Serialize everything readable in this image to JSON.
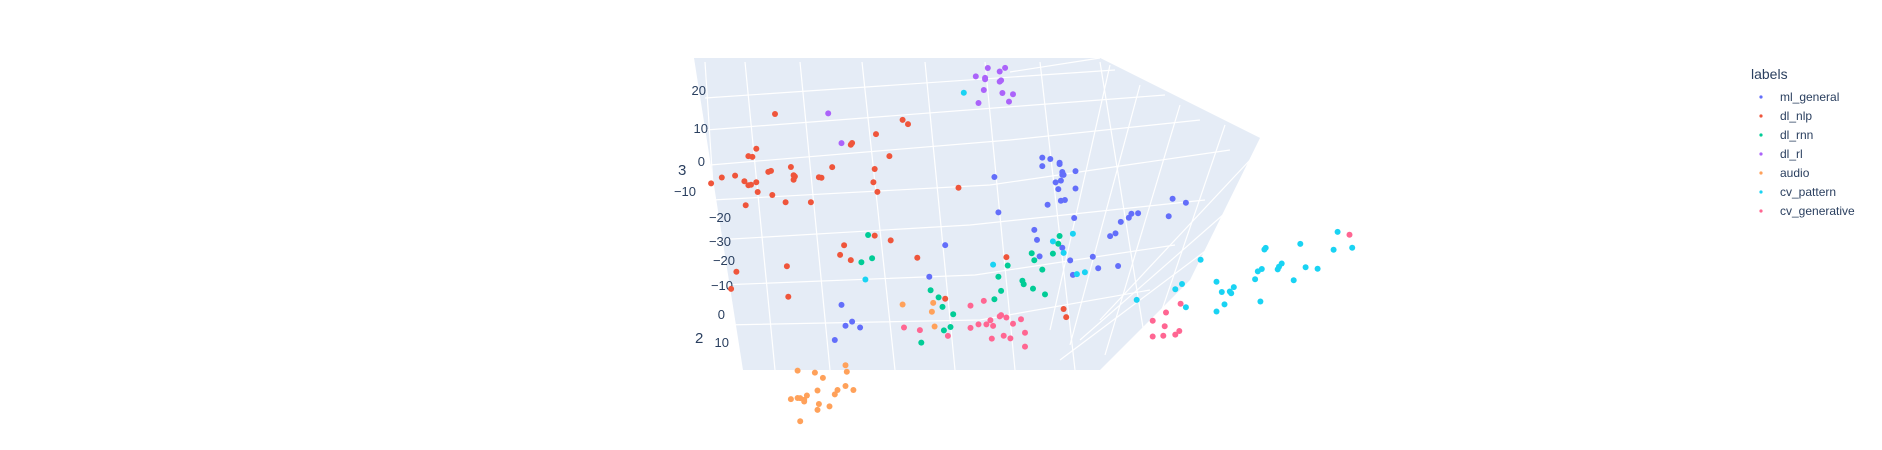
{
  "chart_data": {
    "type": "scatter",
    "projection": "3d",
    "legend": {
      "title": "labels",
      "placement": "top-right"
    },
    "axes": {
      "y_ticks": [
        "20",
        "10",
        "0",
        "−10",
        "−20",
        "−30"
      ],
      "z_ticks": [
        "−20",
        "−10",
        "0",
        "10"
      ],
      "y_title": "3",
      "z_title": "2"
    },
    "grid": true,
    "series": [
      {
        "name": "ml_general",
        "color": "#636efa",
        "points": [
          [
            2.4,
            9.5,
            -9.2
          ],
          [
            1.6,
            12.0,
            -13.7
          ],
          [
            2.5,
            10.0,
            -13.5
          ],
          [
            3.5,
            7.5,
            -16.1
          ],
          [
            1.0,
            9.9,
            -16.0
          ],
          [
            2.5,
            7.1,
            -15.9
          ],
          [
            3.5,
            7.2,
            -13.5
          ],
          [
            2.7,
            7.6,
            -11.2
          ],
          [
            2.4,
            5.7,
            -16.3
          ],
          [
            2.6,
            9.5,
            -13.5
          ],
          [
            2.3,
            8.5,
            -16.5
          ],
          [
            1.4,
            7.8,
            -10.2
          ],
          [
            2.2,
            7.4,
            -13.2
          ],
          [
            1.0,
            4.8,
            -19.6
          ],
          [
            2.0,
            5.5,
            -16.2
          ],
          [
            -2.3,
            5.5,
            -11.2
          ],
          [
            2.3,
            9.2,
            -15.6
          ],
          [
            6.5,
            0.0,
            -13.1
          ],
          [
            7.5,
            0.0,
            -15.7
          ],
          [
            5.2,
            -5.3,
            -12.5
          ],
          [
            8.2,
            2.6,
            -13.9
          ],
          [
            6.1,
            -3.0,
            -15.6
          ],
          [
            10.8,
            1.7,
            -17.2
          ],
          [
            3.4,
            2.3,
            -13.4
          ],
          [
            4.8,
            -1.4,
            -10.6
          ],
          [
            0.6,
            -1.4,
            -13.4
          ],
          [
            0.4,
            1.1,
            -12.6
          ],
          [
            3.1,
            -5.8,
            -14.3
          ],
          [
            6.9,
            -1.2,
            -16.2
          ],
          [
            3.3,
            -5.1,
            -11.2
          ],
          [
            6.7,
            -4.0,
            -11.6
          ],
          [
            0.8,
            -4.4,
            -13.6
          ],
          [
            2.5,
            0.0,
            -10.7
          ],
          [
            -13.8,
            -12.8,
            -10.3
          ],
          [
            -14.6,
            -13.6,
            -8.7
          ],
          [
            -13.3,
            -12.2,
            -10.4
          ],
          [
            -12.7,
            -13.1,
            -10.3
          ],
          [
            -14.1,
            -10.7,
            -11.7
          ],
          [
            -6.3,
            -3.5,
            -14.6
          ],
          [
            -7.5,
            -5.0,
            -10.8
          ],
          [
            -2.6,
            6.0,
            -16.6
          ],
          [
            7.7,
            0.9,
            -15.5
          ],
          [
            11.8,
            5.0,
            -13.3
          ],
          [
            10.5,
            2.4,
            -13.6
          ]
        ]
      },
      {
        "name": "dl_nlp",
        "color": "#EF553B",
        "points": [
          [
            -21.1,
            12.7,
            -13.5
          ],
          [
            -22.1,
            10.2,
            -12.7
          ],
          [
            -19.1,
            18.2,
            -15.1
          ],
          [
            -17.6,
            6.5,
            -16.2
          ],
          [
            -17.7,
            10.1,
            -12.1
          ],
          [
            -21.3,
            6.0,
            -11.9
          ],
          [
            -20.8,
            14.8,
            -11.3
          ],
          [
            -15.6,
            8.0,
            -14.5
          ],
          [
            -16.4,
            5.6,
            -12.8
          ],
          [
            -15.8,
            9.3,
            -13.3
          ],
          [
            -23.1,
            11.4,
            -11.2
          ],
          [
            -19.6,
            9.4,
            -14.1
          ],
          [
            -20.5,
            12.4,
            -15.0
          ],
          [
            -17.7,
            6.3,
            -16.6
          ],
          [
            -21.1,
            10.0,
            -11.3
          ],
          [
            -19.4,
            11.3,
            -12.4
          ],
          [
            -18.3,
            6.1,
            -12.3
          ],
          [
            -23.9,
            9.7,
            -11.9
          ],
          [
            -20.5,
            9.8,
            -12.0
          ],
          [
            -20.9,
            5.9,
            -15.4
          ],
          [
            -14.8,
            8.8,
            -15.5
          ],
          [
            -17.9,
            8.5,
            -15.8
          ],
          [
            -20.4,
            5.6,
            -14.5
          ],
          [
            -21.4,
            6.4,
            -15.5
          ],
          [
            -19.3,
            6.0,
            -13.6
          ],
          [
            -11.4,
            4.6,
            -15.5
          ],
          [
            -13.4,
            13.5,
            -14.6
          ],
          [
            -13.3,
            14.5,
            -13.9
          ],
          [
            -11.5,
            15.3,
            -14.6
          ],
          [
            -10.5,
            13.3,
            -12.9
          ],
          [
            -11.6,
            10.2,
            -13.8
          ],
          [
            -9.5,
            17.5,
            -14.8
          ],
          [
            -9.1,
            17.2,
            -14.4
          ],
          [
            -11.7,
            10.0,
            -11.8
          ],
          [
            -14.2,
            -1.2,
            -10.7
          ],
          [
            -10.4,
            -2.2,
            -14.1
          ],
          [
            -13.4,
            -2.5,
            -11.1
          ],
          [
            -13.9,
            -1.5,
            -12.6
          ],
          [
            -11.6,
            -2.3,
            -15.0
          ],
          [
            -8.4,
            -2.5,
            -11.5
          ],
          [
            -22.0,
            -6.4,
            -13.0
          ],
          [
            -22.4,
            -9.2,
            -12.9
          ],
          [
            -18.1,
            -9.1,
            -11.5
          ],
          [
            -18.2,
            -8.0,
            -15.5
          ],
          [
            -6.3,
            -13.0,
            -15.0
          ],
          [
            -1.7,
            -9.0,
            -18.0
          ],
          [
            2.6,
            -18.3,
            -18.5
          ],
          [
            2.8,
            -21.5,
            -20.3
          ],
          [
            -5.3,
            5.0,
            -15.8
          ]
        ]
      },
      {
        "name": "dl_rnn",
        "color": "#00cc96",
        "points": [
          [
            -11.8,
            -3.8,
            -12.7
          ],
          [
            -12.6,
            -5.2,
            -13.4
          ],
          [
            -12.1,
            -2.2,
            -15.0
          ],
          [
            -2.6,
            -13.2,
            -15.1
          ],
          [
            -0.5,
            -11.8,
            -16.8
          ],
          [
            -2.3,
            -10.0,
            -15.7
          ],
          [
            -2.1,
            -12.5,
            -15.8
          ],
          [
            -0.4,
            -8.1,
            -12.6
          ],
          [
            0.3,
            -12.2,
            -15.9
          ],
          [
            1.2,
            -14.4,
            -17.1
          ],
          [
            0.4,
            -7.8,
            -16.3
          ],
          [
            2.3,
            -3.7,
            -16.3
          ],
          [
            2.2,
            -4.6,
            -15.9
          ],
          [
            1.8,
            -1.7,
            -11.4
          ],
          [
            1.0,
            -9.8,
            -16.7
          ],
          [
            -1.6,
            -3.4,
            -11.1
          ],
          [
            0.2,
            -6.2,
            -15.9
          ],
          [
            -7.4,
            -12.9,
            -16.3
          ],
          [
            -5.7,
            -14.0,
            -13.4
          ],
          [
            -6.4,
            -14.3,
            -11.0
          ],
          [
            -6.5,
            -14.8,
            -15.4
          ],
          [
            -6.8,
            -14.1,
            -16.3
          ],
          [
            -8.1,
            -18.2,
            -12.8
          ],
          [
            -5.9,
            -18.1,
            -15.3
          ]
        ]
      },
      {
        "name": "dl_rl",
        "color": "#ab63fa",
        "points": [
          [
            -3.3,
            25.4,
            -13.8
          ],
          [
            -3.1,
            26.3,
            -14.8
          ],
          [
            -2.1,
            24.1,
            -14.9
          ],
          [
            -2.2,
            24.5,
            -14.3
          ],
          [
            -4.0,
            25.9,
            -13.8
          ],
          [
            -1.8,
            25.2,
            -15.9
          ],
          [
            -2.0,
            24.0,
            -12.9
          ],
          [
            -1.5,
            20.3,
            -15.1
          ],
          [
            -3.3,
            23.2,
            -16.2
          ],
          [
            -3.8,
            22.1,
            -13.1
          ],
          [
            -2.2,
            25.4,
            -15.1
          ],
          [
            -1.2,
            24.4,
            -12.3
          ],
          [
            -3.4,
            24.5,
            -12.9
          ],
          [
            -15.1,
            18.2,
            -15.2
          ],
          [
            -14.1,
            15.0,
            -13.4
          ]
        ]
      },
      {
        "name": "audio",
        "color": "#FFA15A",
        "points": [
          [
            -16.1,
            -24.4,
            -13.9
          ],
          [
            -15.5,
            -25.3,
            -13.9
          ],
          [
            -13.2,
            -30.0,
            -16.5
          ],
          [
            -15.8,
            -27.7,
            -11.9
          ],
          [
            -13.8,
            -26.0,
            -16.7
          ],
          [
            -13.8,
            -28.4,
            -15.6
          ],
          [
            -16.9,
            -27.3,
            -12.2
          ],
          [
            -15.0,
            -28.0,
            -11.8
          ],
          [
            -17.2,
            -29.7,
            -11.0
          ],
          [
            -16.7,
            -29.0,
            -14.6
          ],
          [
            -16.9,
            -28.7,
            -13.3
          ],
          [
            -14.4,
            -29.8,
            -16.3
          ],
          [
            -13.7,
            -25.6,
            -15.2
          ],
          [
            -17.4,
            -27.9,
            -13.1
          ],
          [
            -17.2,
            -27.5,
            -12.7
          ],
          [
            -15.9,
            -25.5,
            -12.0
          ],
          [
            -17.9,
            -28.6,
            -13.6
          ],
          [
            -17.4,
            -26.0,
            -15.8
          ],
          [
            -14.6,
            -28.4,
            -14.2
          ],
          [
            -15.9,
            -29.5,
            -12.7
          ],
          [
            -7.2,
            -12.9,
            -14.2
          ],
          [
            -7.3,
            -14.8,
            -14.6
          ],
          [
            -9.5,
            -14.6,
            -15.6
          ],
          [
            -7.1,
            -16.9,
            -14.2
          ]
        ]
      },
      {
        "name": "cv_pattern",
        "color": "#19d3f3",
        "points": [
          [
            18.8,
            -1.8,
            -9.3
          ],
          [
            17.2,
            -3.9,
            -10.6
          ],
          [
            17.5,
            -3.6,
            -10.7
          ],
          [
            17.8,
            -5.0,
            -15.6
          ],
          [
            18.7,
            -6.0,
            -13.0
          ],
          [
            17.7,
            -0.6,
            -11.0
          ],
          [
            19.0,
            -4.6,
            -12.6
          ],
          [
            20.4,
            -2.9,
            -14.2
          ],
          [
            23.2,
            -2.5,
            -15.8
          ],
          [
            24.3,
            -1.2,
            -11.9
          ],
          [
            22.9,
            -4.3,
            -14.6
          ],
          [
            21.7,
            -6.2,
            -13.3
          ],
          [
            19.9,
            -6.4,
            -11.6
          ],
          [
            20.8,
            -3.5,
            -10.9
          ],
          [
            14.7,
            -10.2,
            -11.3
          ],
          [
            14.1,
            -7.8,
            -12.7
          ],
          [
            17.0,
            -9.5,
            -14.8
          ],
          [
            14.1,
            -11.2,
            -11.1
          ],
          [
            17.4,
            -8.9,
            -10.5
          ],
          [
            11.5,
            -9.9,
            -14.4
          ],
          [
            12.9,
            -7.1,
            -15.7
          ],
          [
            14.5,
            -8.2,
            -11.4
          ],
          [
            15.4,
            -9.1,
            -13.1
          ],
          [
            11.0,
            -11.6,
            -15.2
          ],
          [
            11.8,
            -12.3,
            -12.9
          ],
          [
            8.1,
            -13.1,
            -14.9
          ],
          [
            15.1,
            -13.2,
            -16.4
          ],
          [
            15.2,
            -12.8,
            -15.7
          ],
          [
            4.2,
            -13.2,
            -19.6
          ],
          [
            3.6,
            -13.3,
            -19.4
          ],
          [
            3.3,
            -2.6,
            -15.6
          ],
          [
            1.8,
            -3.7,
            -15.4
          ],
          [
            2.6,
            -3.2,
            -13.0
          ],
          [
            -4.9,
            21.1,
            -15.8
          ],
          [
            -12.3,
            -6.9,
            -12.2
          ],
          [
            -2.7,
            -12.3,
            -20.0
          ]
        ]
      },
      {
        "name": "cv_generative",
        "color": "#FF6692",
        "points": [
          [
            -2.8,
            -21.6,
            -16.8
          ],
          [
            -1.9,
            -21.3,
            -17.0
          ],
          [
            -2.1,
            -17.1,
            -16.3
          ],
          [
            -0.3,
            -19.7,
            -13.6
          ],
          [
            -1.7,
            -16.6,
            -15.4
          ],
          [
            -4.4,
            -16.5,
            -17.3
          ],
          [
            -2.9,
            -20.2,
            -18.5
          ],
          [
            -3.8,
            -19.9,
            -17.5
          ],
          [
            -2.7,
            -22.7,
            -20.0
          ],
          [
            -0.6,
            -18.4,
            -16.9
          ],
          [
            -2.2,
            -16.4,
            -15.4
          ],
          [
            -1.4,
            -18.3,
            -13.6
          ],
          [
            -3.2,
            -20.4,
            -18.0
          ],
          [
            -3.4,
            -15.2,
            -16.8
          ],
          [
            -1.2,
            -21.2,
            -18.9
          ],
          [
            -0.3,
            -19.7,
            -15.9
          ],
          [
            -6.1,
            -18.5,
            -14.2
          ],
          [
            -4.4,
            -20.6,
            -17.6
          ],
          [
            -8.2,
            -22.6,
            -19.2
          ],
          [
            -9.4,
            -18.8,
            -15.9
          ],
          [
            9.3,
            -20.1,
            -18.3
          ],
          [
            10.3,
            -19.2,
            -18.8
          ],
          [
            10.1,
            -20.1,
            -15.8
          ],
          [
            11.4,
            -17.4,
            -18.5
          ],
          [
            9.3,
            -19.1,
            -14.7
          ],
          [
            11.0,
            -20.4,
            -16.3
          ],
          [
            11.3,
            -19.6,
            -16.1
          ],
          [
            10.2,
            -19.8,
            -17.1
          ],
          [
            24.1,
            -4.1,
            -16.9
          ]
        ]
      }
    ]
  }
}
